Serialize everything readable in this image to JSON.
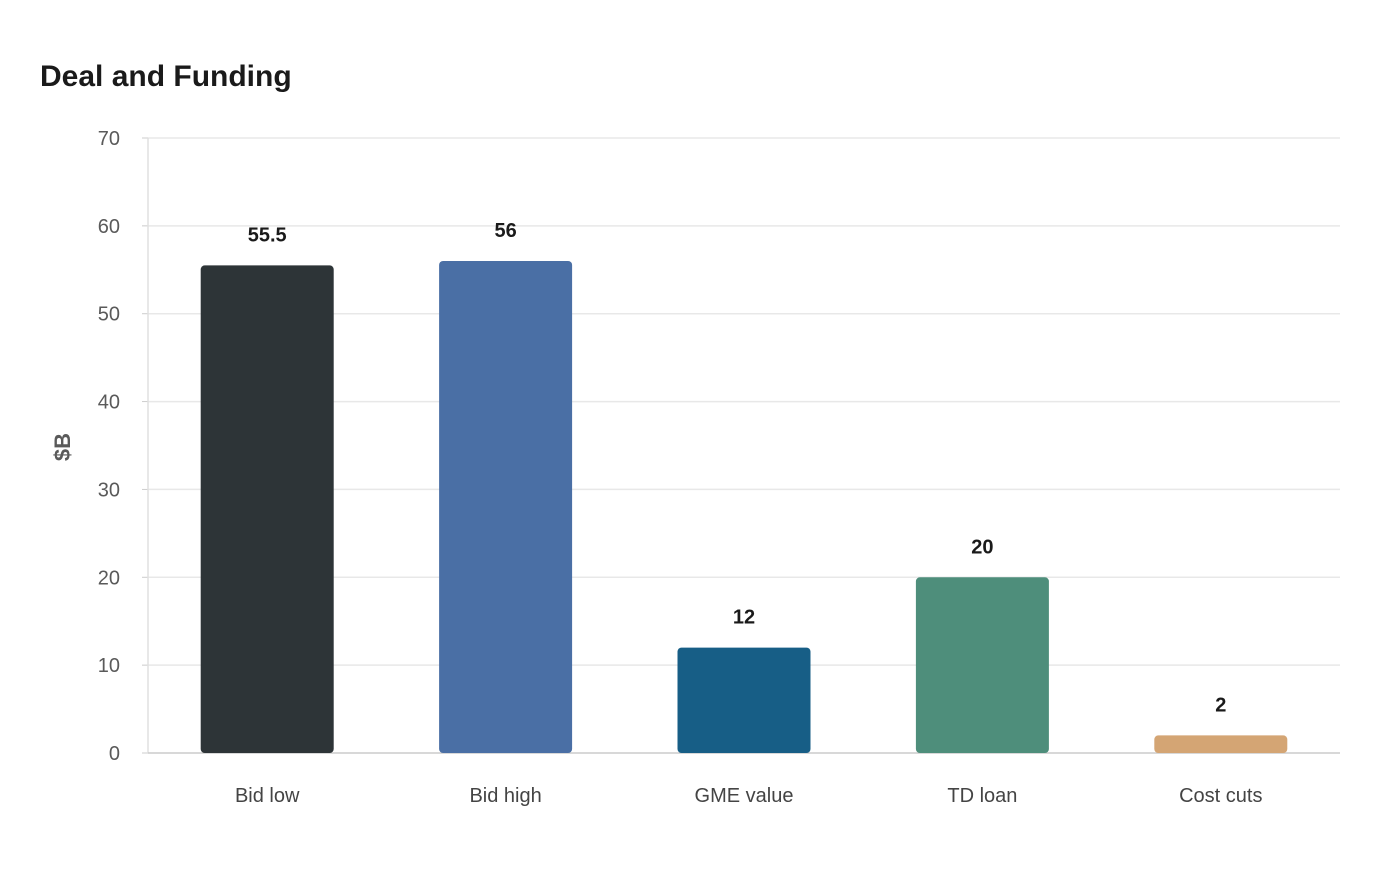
{
  "chart_data": {
    "type": "bar",
    "title": "Deal and Funding",
    "xlabel": "",
    "ylabel": "$B",
    "ylim": [
      0,
      70
    ],
    "yticks": [
      0,
      10,
      20,
      30,
      40,
      50,
      60,
      70
    ],
    "grid": true,
    "legend": "none",
    "categories": [
      "Bid low",
      "Bid high",
      "GME value",
      "TD loan",
      "Cost cuts"
    ],
    "values": [
      55.5,
      56,
      12,
      20,
      2
    ],
    "data_labels": [
      "55.5",
      "56",
      "12",
      "20",
      "2"
    ],
    "colors": [
      "#2d3437",
      "#4a6fa5",
      "#175e86",
      "#4e8e7b",
      "#d4a574"
    ]
  }
}
